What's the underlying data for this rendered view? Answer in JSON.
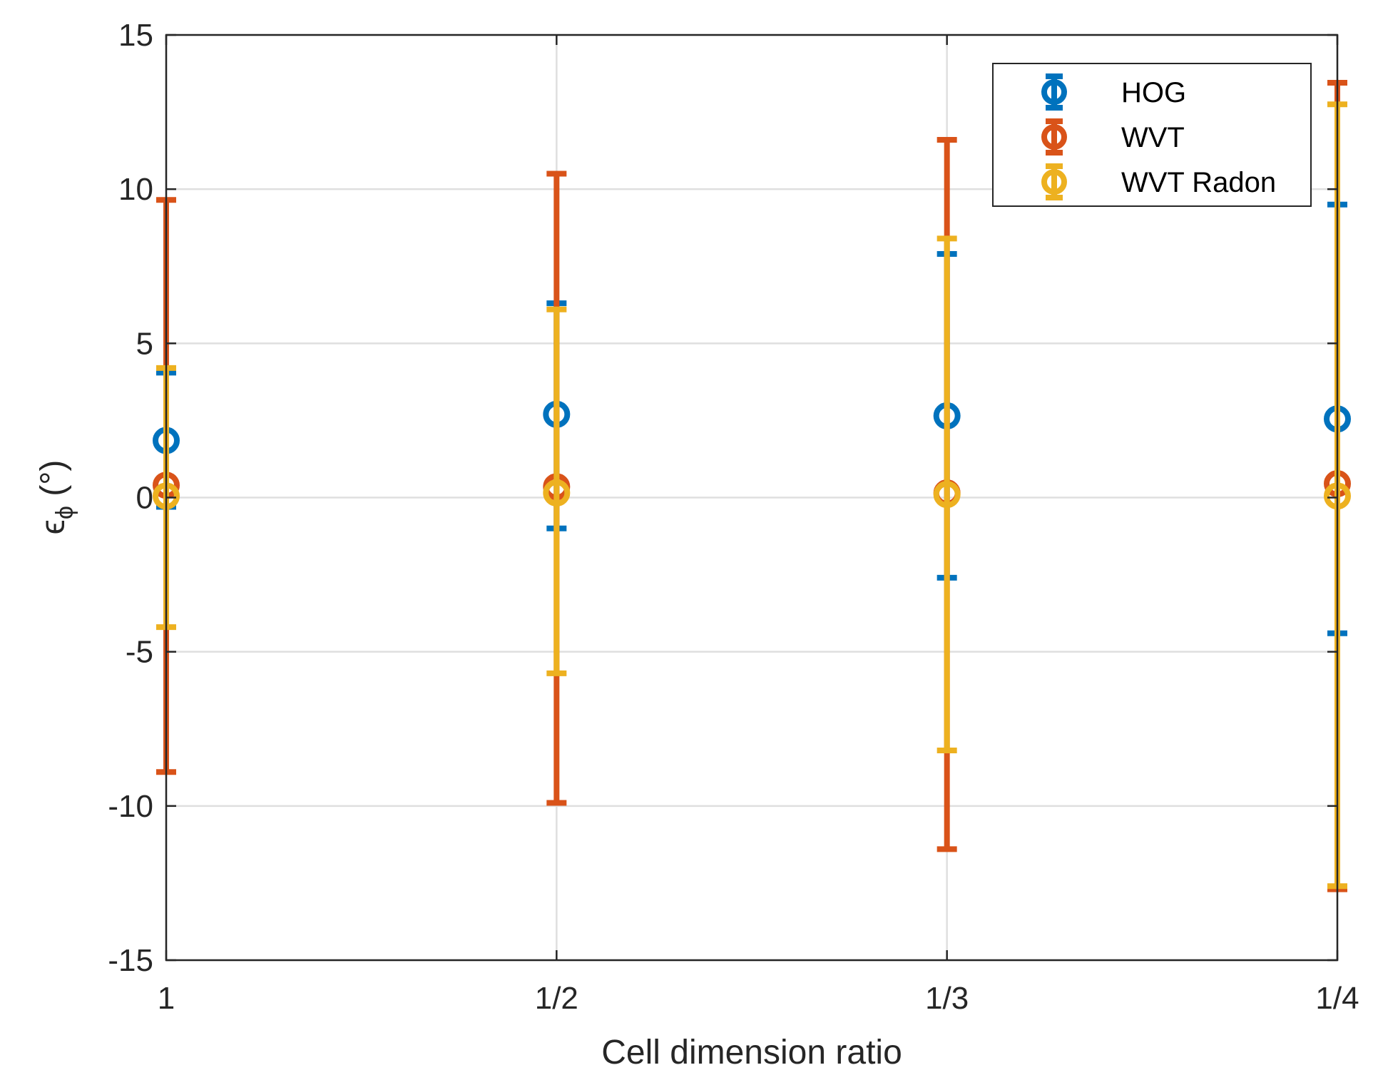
{
  "chart_data": {
    "type": "scatter",
    "title": "",
    "xlabel": "Cell dimension ratio",
    "ylabel": {
      "symbol": "ϵ",
      "subscript": "ϕ",
      "unit": " (°)"
    },
    "categories": [
      "1",
      "1/2",
      "1/3",
      "1/4"
    ],
    "ylim": [
      -15,
      15
    ],
    "yticks": [
      "-15",
      "-10",
      "-5",
      "0",
      "5",
      "10",
      "15"
    ],
    "grid": true,
    "legend_position": "top-right",
    "series": [
      {
        "name": "HOG",
        "color": "#0072BD",
        "values": [
          1.85,
          2.7,
          2.65,
          2.55
        ],
        "lower": [
          -0.3,
          -1.0,
          -2.6,
          -4.4
        ],
        "upper": [
          4.05,
          6.3,
          7.9,
          9.5
        ]
      },
      {
        "name": "WVT",
        "color": "#D95319",
        "values": [
          0.4,
          0.35,
          0.15,
          0.45
        ],
        "lower": [
          -8.9,
          -9.9,
          -11.4,
          -12.7
        ],
        "upper": [
          9.65,
          10.5,
          11.6,
          13.45
        ]
      },
      {
        "name": "WVT Radon",
        "color": "#EDB120",
        "values": [
          0.05,
          0.15,
          0.1,
          0.05
        ],
        "lower": [
          -4.2,
          -5.7,
          -8.2,
          -12.6
        ],
        "upper": [
          4.2,
          6.1,
          8.4,
          12.75
        ]
      }
    ]
  }
}
